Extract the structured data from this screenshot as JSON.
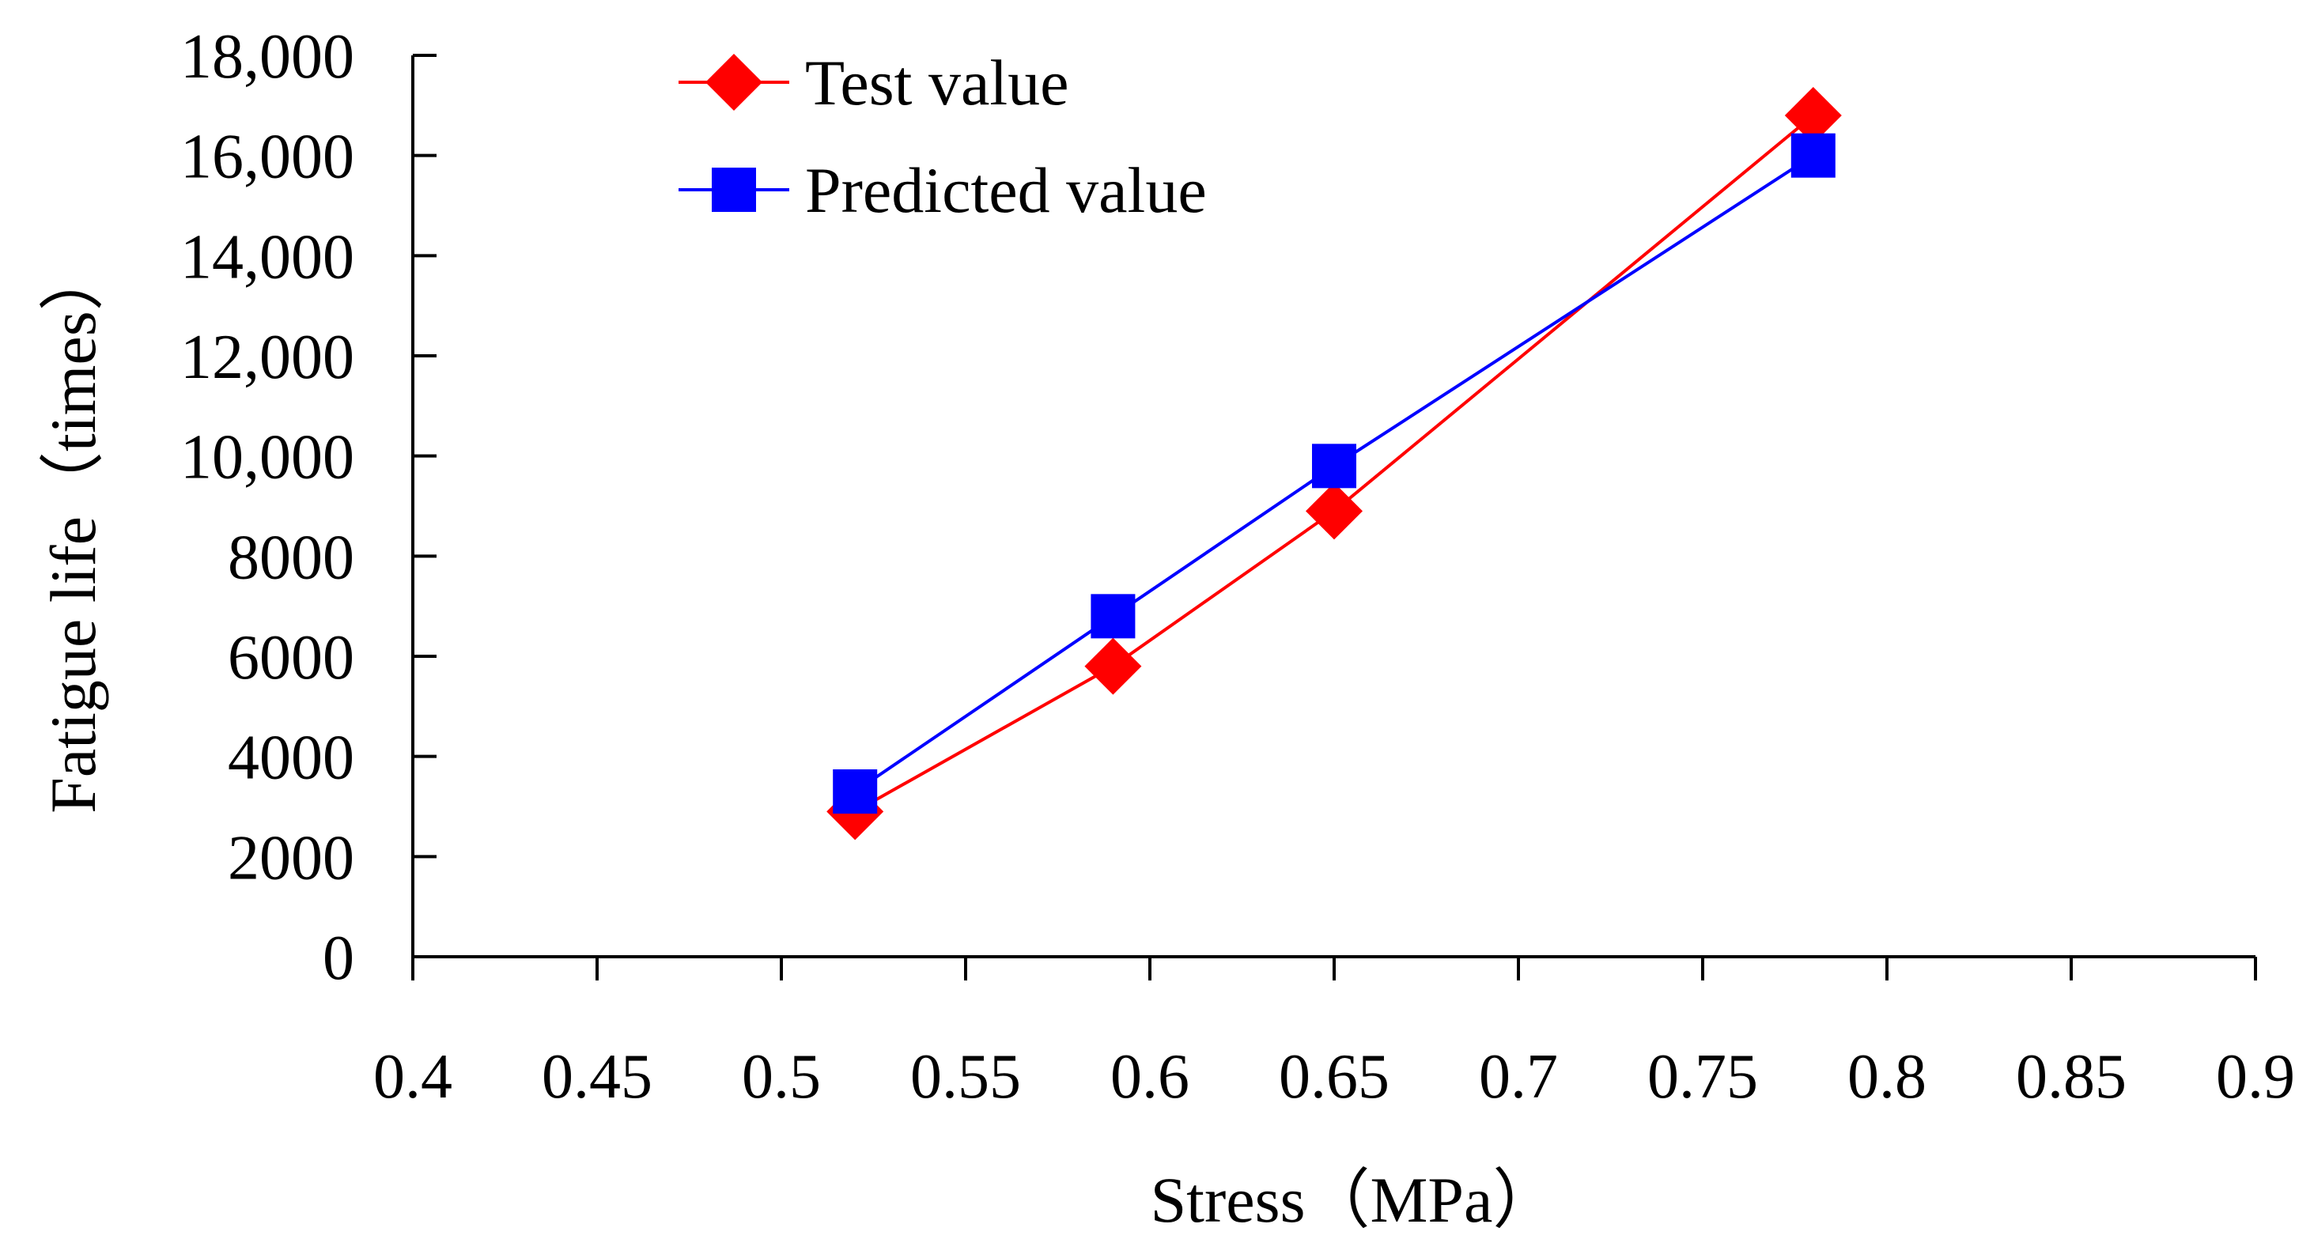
{
  "chart_data": {
    "type": "line",
    "title": "",
    "xlabel": "Stress（MPa）",
    "ylabel": "Fatigue life（times）",
    "xlim": [
      0.4,
      0.9
    ],
    "ylim": [
      0,
      18000
    ],
    "x_ticks": [
      0.4,
      0.45,
      0.5,
      0.55,
      0.6,
      0.65,
      0.7,
      0.75,
      0.8,
      0.85,
      0.9
    ],
    "x_tick_labels": [
      "0.4",
      "0.45",
      "0.5",
      "0.55",
      "0.6",
      "0.65",
      "0.7",
      "0.75",
      "0.8",
      "0.85",
      "0.9"
    ],
    "y_ticks": [
      0,
      2000,
      4000,
      6000,
      8000,
      10000,
      12000,
      14000,
      16000,
      18000
    ],
    "y_tick_labels": [
      "0",
      "2000",
      "4000",
      "6000",
      "8000",
      "10,000",
      "12,000",
      "14,000",
      "16,000",
      "18,000"
    ],
    "grid": false,
    "legend_position": "top-left",
    "series": [
      {
        "name": "Test value",
        "color": "#ff0000",
        "marker": "diamond",
        "x": [
          0.52,
          0.59,
          0.65,
          0.78
        ],
        "y": [
          2900,
          5800,
          8900,
          16800
        ]
      },
      {
        "name": "Predicted value",
        "color": "#0000ff",
        "marker": "square",
        "x": [
          0.52,
          0.59,
          0.65,
          0.78
        ],
        "y": [
          3300,
          6800,
          9800,
          16000
        ]
      }
    ]
  }
}
